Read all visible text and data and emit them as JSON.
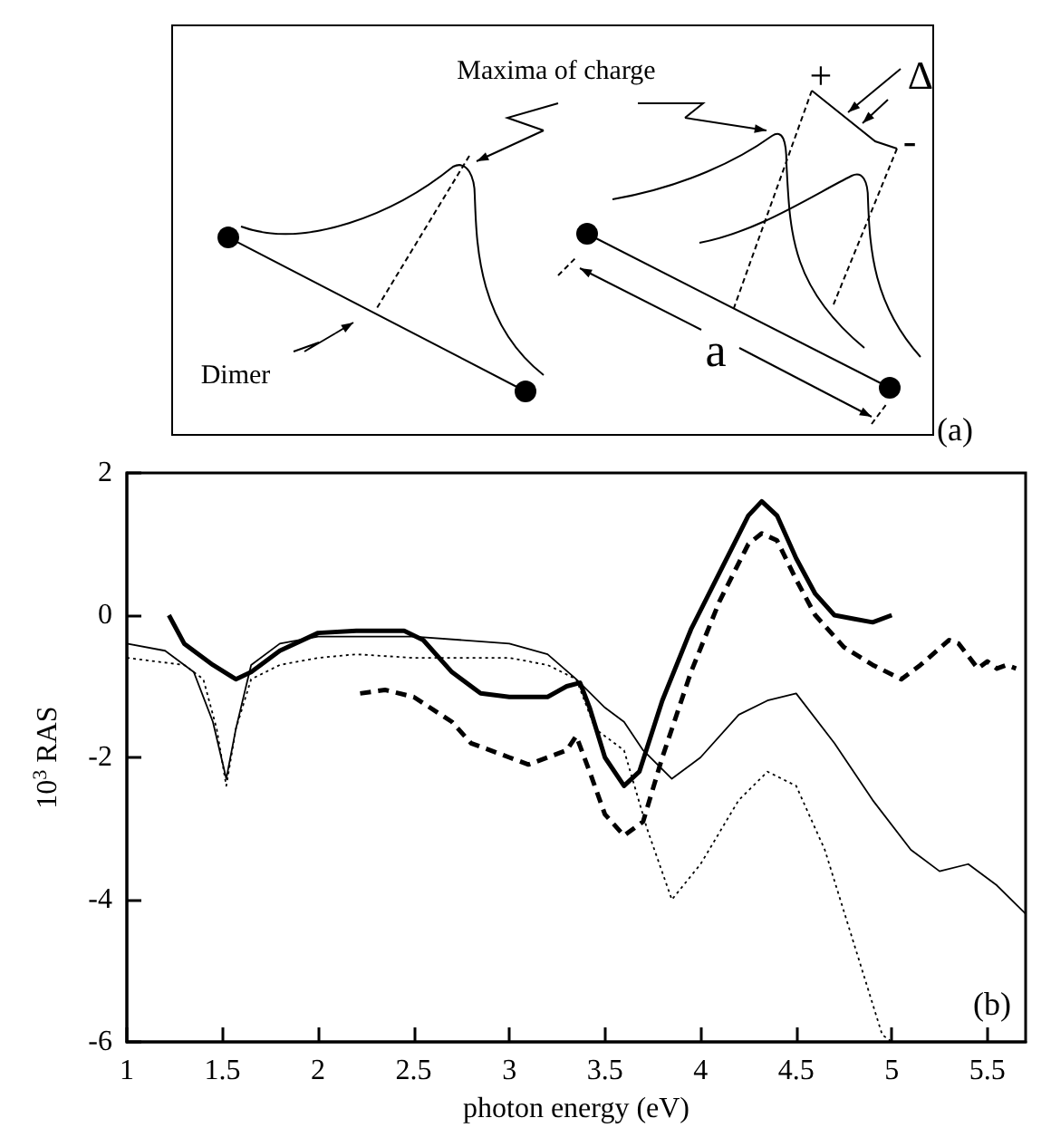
{
  "chart_data": [
    {
      "type": "other",
      "annotations": [
        "Maxima of charge",
        "Dimer",
        "+",
        "Δ",
        "-",
        "a",
        "(a)"
      ]
    },
    {
      "type": "line",
      "xlabel": "photon energy (eV)",
      "ylabel": "10$^{3}$ RAS",
      "xlim": [
        1,
        5.7
      ],
      "xticks": [
        1,
        1.5,
        2,
        2.5,
        3,
        3.5,
        4,
        4.5,
        5,
        5.5
      ],
      "ylim": [
        -6,
        2
      ],
      "yticks": [
        -6,
        -4,
        -2,
        0,
        2
      ],
      "grid": false,
      "marker": "none",
      "annotations": [
        "(b)"
      ],
      "series": [
        {
          "color": "#000000",
          "line_style": "solid",
          "x": [
            1.22,
            1.3,
            1.45,
            1.57,
            1.65,
            1.8,
            2.0,
            2.2,
            2.45,
            2.55,
            2.7,
            2.85,
            3.0,
            3.2,
            3.3,
            3.37,
            3.42,
            3.5,
            3.6,
            3.68,
            3.8,
            3.95,
            4.1,
            4.25,
            4.32,
            4.4,
            4.5,
            4.6,
            4.7,
            4.8,
            4.9,
            5.0
          ],
          "values": [
            0,
            -0.4,
            -0.7,
            -0.9,
            -0.8,
            -0.5,
            -0.25,
            -0.22,
            -0.22,
            -0.35,
            -0.8,
            -1.1,
            -1.15,
            -1.15,
            -1.0,
            -0.95,
            -1.3,
            -2.0,
            -2.4,
            -2.2,
            -1.2,
            -0.2,
            0.6,
            1.4,
            1.6,
            1.4,
            0.8,
            0.3,
            0.0,
            -0.05,
            -0.1,
            0.0
          ]
        },
        {
          "color": "#000000",
          "line_style": "dashed",
          "x": [
            2.22,
            2.35,
            2.5,
            2.7,
            2.8,
            3.0,
            3.1,
            3.3,
            3.35,
            3.42,
            3.5,
            3.6,
            3.7,
            3.8,
            3.95,
            4.1,
            4.25,
            4.32,
            4.4,
            4.5,
            4.6,
            4.75,
            4.9,
            5.05,
            5.15,
            5.3,
            5.35,
            5.45,
            5.5,
            5.55,
            5.6,
            5.65
          ],
          "values": [
            -1.1,
            -1.05,
            -1.15,
            -1.5,
            -1.8,
            -2.0,
            -2.1,
            -1.9,
            -1.7,
            -2.2,
            -2.8,
            -3.1,
            -2.9,
            -2.0,
            -0.8,
            0.2,
            1.0,
            1.15,
            1.05,
            0.5,
            0.0,
            -0.45,
            -0.7,
            -0.9,
            -0.7,
            -0.35,
            -0.4,
            -0.75,
            -0.65,
            -0.75,
            -0.7,
            -0.75
          ]
        },
        {
          "color": "#000000",
          "line_style": "solid",
          "x": [
            1.0,
            1.2,
            1.35,
            1.45,
            1.52,
            1.57,
            1.65,
            1.8,
            2.0,
            2.5,
            3.0,
            3.2,
            3.35,
            3.5,
            3.6,
            3.7,
            3.85,
            4.0,
            4.2,
            4.35,
            4.5,
            4.7,
            4.9,
            5.1,
            5.25,
            5.4,
            5.55,
            5.7
          ],
          "values": [
            -0.4,
            -0.5,
            -0.8,
            -1.5,
            -2.3,
            -1.6,
            -0.7,
            -0.4,
            -0.3,
            -0.3,
            -0.4,
            -0.55,
            -0.9,
            -1.3,
            -1.5,
            -1.9,
            -2.3,
            -2.0,
            -1.4,
            -1.2,
            -1.1,
            -1.8,
            -2.6,
            -3.3,
            -3.6,
            -3.5,
            -3.8,
            -4.2
          ]
        },
        {
          "color": "#000000",
          "line_style": "dotted",
          "x": [
            1.0,
            1.3,
            1.4,
            1.47,
            1.52,
            1.57,
            1.65,
            1.8,
            2.0,
            2.2,
            2.5,
            3.0,
            3.2,
            3.35,
            3.45,
            3.6,
            3.72,
            3.85,
            4.0,
            4.2,
            4.35,
            4.5,
            4.65,
            4.8,
            4.95,
            5.0
          ],
          "values": [
            -0.6,
            -0.7,
            -0.9,
            -1.6,
            -2.4,
            -1.6,
            -0.9,
            -0.7,
            -0.6,
            -0.55,
            -0.6,
            -0.6,
            -0.7,
            -0.9,
            -1.6,
            -1.9,
            -3.0,
            -4.0,
            -3.5,
            -2.6,
            -2.2,
            -2.4,
            -3.3,
            -4.6,
            -5.9,
            -6.0
          ]
        }
      ]
    }
  ]
}
